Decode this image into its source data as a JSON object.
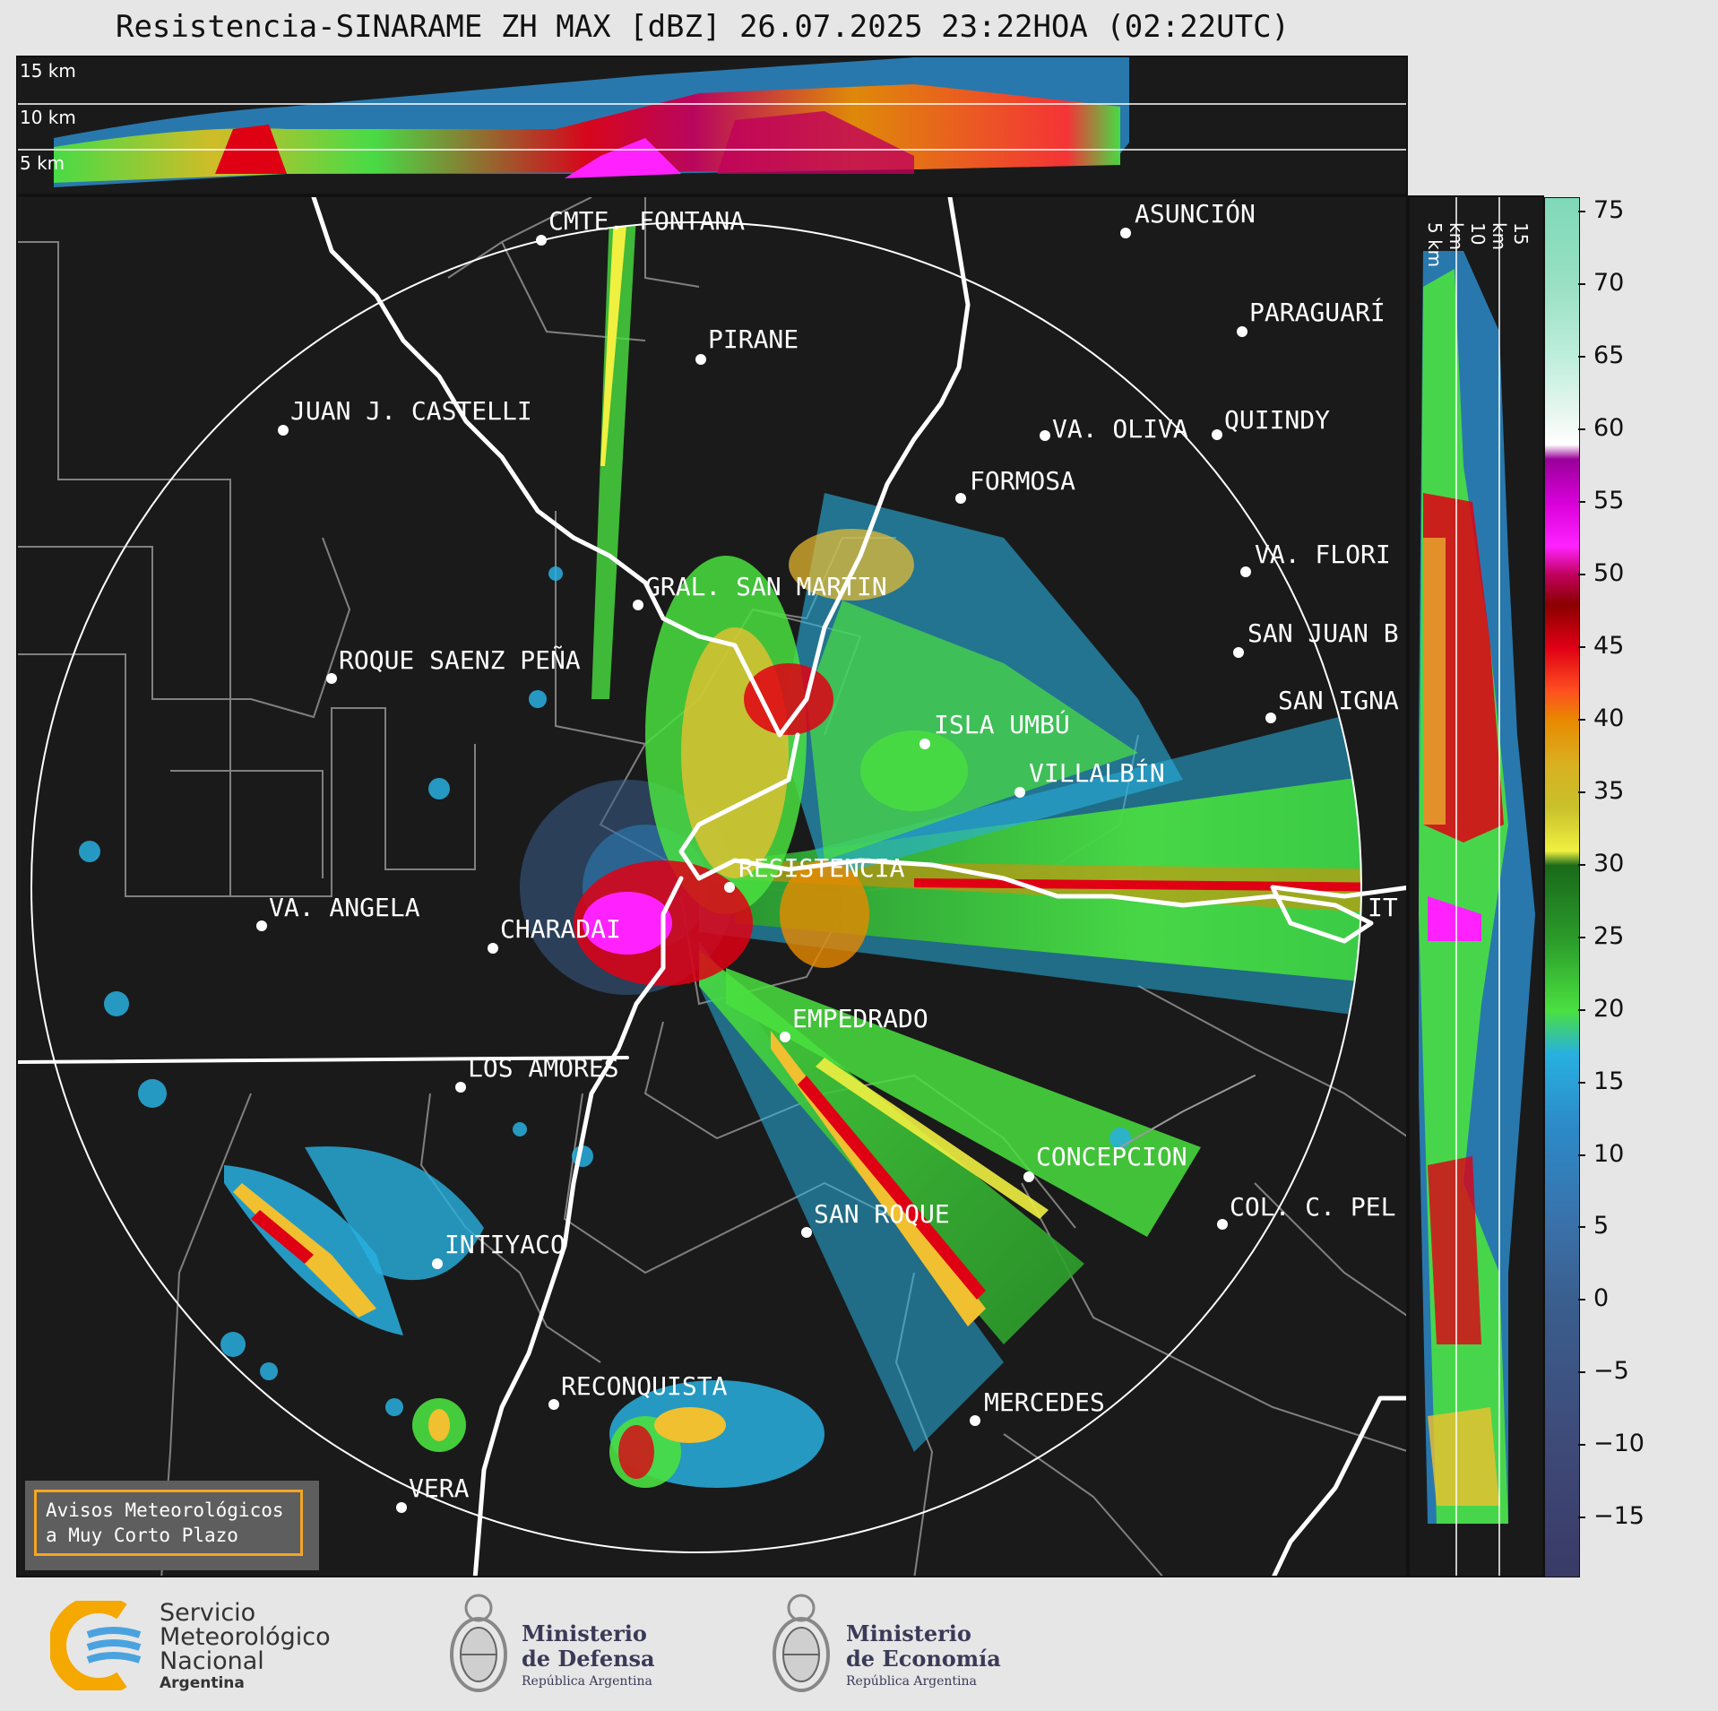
{
  "title": "Resistencia-SINARAME ZH MAX [dBZ] 26.07.2025 23:22HOA (02:22UTC)",
  "top_panel": {
    "height_labels": [
      "15 km",
      "10 km",
      "5 km"
    ]
  },
  "side_panel": {
    "height_labels": [
      "5 km",
      "10 km",
      "15 km"
    ]
  },
  "colorbar": {
    "ticks": [
      "75",
      "70",
      "65",
      "60",
      "55",
      "50",
      "45",
      "40",
      "35",
      "30",
      "25",
      "20",
      "15",
      "10",
      "5",
      "0",
      "−5",
      "−10",
      "−15"
    ],
    "stops": [
      {
        "v": 76,
        "color": "#7fd9b9"
      },
      {
        "v": 70,
        "color": "#99e0c4"
      },
      {
        "v": 65,
        "color": "#bfeedd"
      },
      {
        "v": 61,
        "color": "#eaf7f1"
      },
      {
        "v": 59,
        "color": "#ffffff"
      },
      {
        "v": 58,
        "color": "#9a009a"
      },
      {
        "v": 55,
        "color": "#d800d8"
      },
      {
        "v": 52,
        "color": "#ff22ff"
      },
      {
        "v": 50,
        "color": "#c0005a"
      },
      {
        "v": 48,
        "color": "#8a0000"
      },
      {
        "v": 45,
        "color": "#e00014"
      },
      {
        "v": 42,
        "color": "#ff5020"
      },
      {
        "v": 40,
        "color": "#e88a00"
      },
      {
        "v": 37,
        "color": "#d9b020"
      },
      {
        "v": 34,
        "color": "#c9c02a"
      },
      {
        "v": 31,
        "color": "#f0f040"
      },
      {
        "v": 30,
        "color": "#1a6a1a"
      },
      {
        "v": 25,
        "color": "#2a9a2a"
      },
      {
        "v": 20,
        "color": "#4ae040"
      },
      {
        "v": 17,
        "color": "#28b0e0"
      },
      {
        "v": 12,
        "color": "#2c8ac8"
      },
      {
        "v": 5,
        "color": "#3a70a8"
      },
      {
        "v": 0,
        "color": "#3a5e8e"
      },
      {
        "v": -10,
        "color": "#3e4a78"
      },
      {
        "v": -19,
        "color": "#3a3a66"
      }
    ],
    "range": [
      -19,
      76
    ]
  },
  "cities": [
    {
      "name": "CMTE. FONTANA"
    },
    {
      "name": "PIRANE"
    },
    {
      "name": "JUAN J. CASTELLI"
    },
    {
      "name": "ASUNCIÓN"
    },
    {
      "name": "PARAGUARÍ"
    },
    {
      "name": "VA. OLIVA"
    },
    {
      "name": "QUIINDY"
    },
    {
      "name": "FORMOSA"
    },
    {
      "name": "VA. FLORI"
    },
    {
      "name": "GRAL. SAN MARTIN"
    },
    {
      "name": "SAN JUAN B"
    },
    {
      "name": "ROQUE SAENZ PEÑA"
    },
    {
      "name": "SAN IGNA"
    },
    {
      "name": "ISLA UMBÚ"
    },
    {
      "name": "VILLALBÍN"
    },
    {
      "name": "RESISTENCIA"
    },
    {
      "name": "VA. ANGELA"
    },
    {
      "name": "CHARADAI"
    },
    {
      "name": "IT"
    },
    {
      "name": "EMPEDRADO"
    },
    {
      "name": "LOS AMORES"
    },
    {
      "name": "CONCEPCION"
    },
    {
      "name": "SAN ROQUE"
    },
    {
      "name": "COL. C. PEL"
    },
    {
      "name": "INTIYACO"
    },
    {
      "name": "RECONQUISTA"
    },
    {
      "name": "MERCEDES"
    },
    {
      "name": "VERA"
    }
  ],
  "warning_box": {
    "line1": "Avisos Meteorológicos",
    "line2": "a Muy Corto Plazo"
  },
  "logos": {
    "smn": {
      "line1": "Servicio",
      "line2": "Meteorológico",
      "line3": "Nacional",
      "line4": "Argentina"
    },
    "defensa": {
      "line1": "Ministerio",
      "line2": "de Defensa",
      "line3": "República Argentina"
    },
    "economia": {
      "line1": "Ministerio",
      "line2": "de Economía",
      "line3": "República Argentina"
    }
  }
}
